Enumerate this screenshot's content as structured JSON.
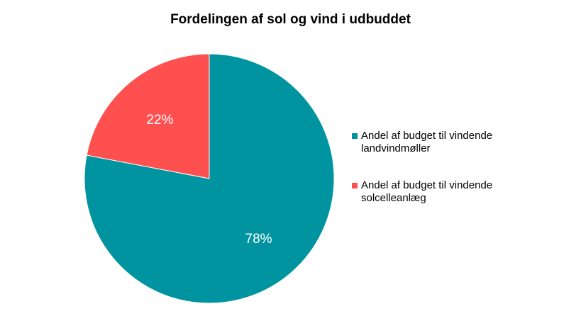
{
  "chart_data": {
    "type": "pie",
    "title": "Fordelingen af sol og vind i udbuddet",
    "slices": [
      {
        "label": "Andel af budget til vindende landvindmøller",
        "value": 78,
        "display": "78%",
        "color": "#0094A0"
      },
      {
        "label": "Andel af budget til vindende solcelleanlæg",
        "value": 22,
        "display": "22%",
        "color": "#FF5050"
      }
    ],
    "legend_position": "right"
  }
}
